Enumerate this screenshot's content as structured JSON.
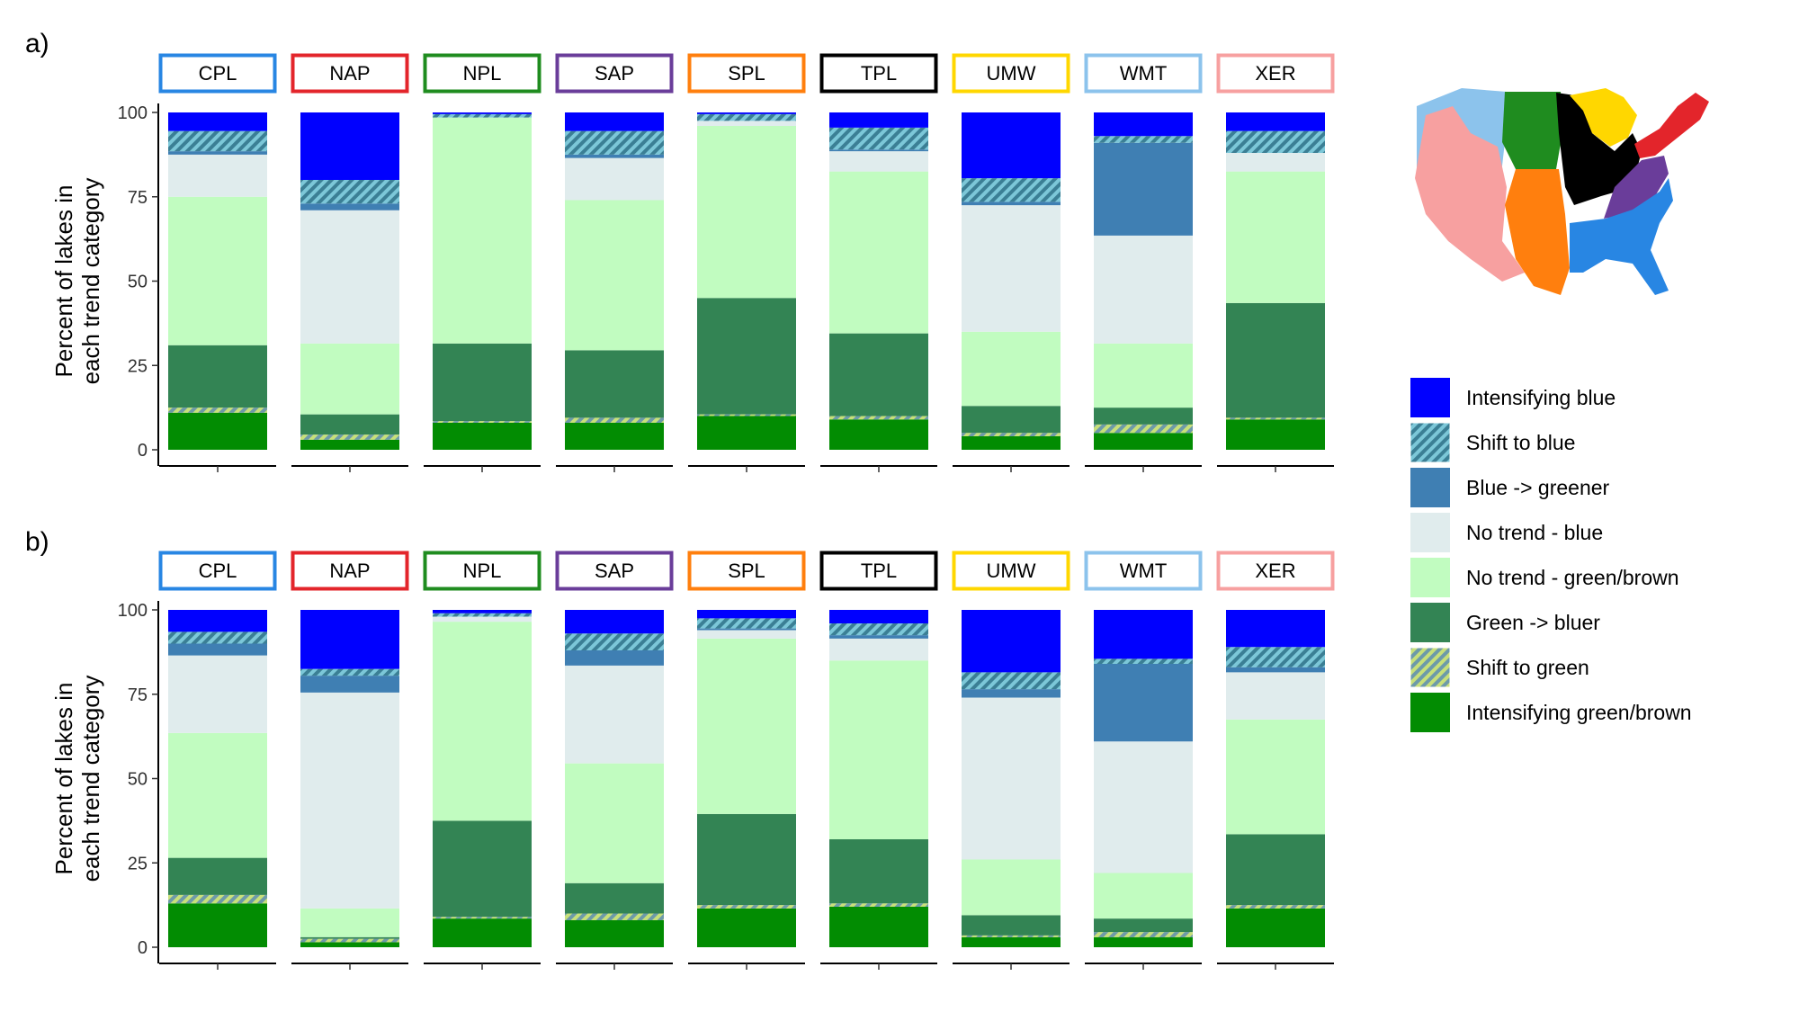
{
  "chart_data": {
    "type": "bar",
    "stacked": true,
    "ylabel": "Percent of lakes in\neach trend category",
    "ylim": [
      0,
      100
    ],
    "yticks": [
      0,
      25,
      50,
      75,
      100
    ],
    "legend": {
      "placement": "right",
      "entries": [
        {
          "label": "Intensifying blue",
          "color": "#0000ff",
          "hatched": false
        },
        {
          "label": "Shift to blue",
          "color": "#5f9fbf",
          "hatched": true
        },
        {
          "label": "Blue -> greener",
          "color": "#3f7fb3",
          "hatched": false
        },
        {
          "label": "No trend - blue",
          "color": "#e0eced",
          "hatched": false
        },
        {
          "label": "No trend - green/brown",
          "color": "#c1fcc0",
          "hatched": false
        },
        {
          "label": "Green -> bluer",
          "color": "#338454",
          "hatched": false
        },
        {
          "label": "Shift to green",
          "color": "#a9bf73",
          "hatched": true
        },
        {
          "label": "Intensifying green/brown",
          "color": "#028c02",
          "hatched": false
        }
      ]
    },
    "regions": [
      {
        "name": "CPL",
        "color": "#2886e3"
      },
      {
        "name": "NAP",
        "color": "#e3252b"
      },
      {
        "name": "NPL",
        "color": "#1f8c1f"
      },
      {
        "name": "SAP",
        "color": "#6a3d9a"
      },
      {
        "name": "SPL",
        "color": "#ff7f0e"
      },
      {
        "name": "TPL",
        "color": "#000000"
      },
      {
        "name": "UMW",
        "color": "#ffd700"
      },
      {
        "name": "WMT",
        "color": "#8cc3ec"
      },
      {
        "name": "XER",
        "color": "#f7a0a0"
      }
    ],
    "panels": [
      {
        "label": "a)",
        "categories": [
          "CPL",
          "NAP",
          "NPL",
          "SAP",
          "SPL",
          "TPL",
          "UMW",
          "WMT",
          "XER"
        ],
        "series": [
          {
            "name": "Intensifying green/brown",
            "values": [
              11,
              3,
              8,
              8,
              10,
              9,
              4,
              5,
              9
            ]
          },
          {
            "name": "Shift to green",
            "values": [
              1.5,
              1.5,
              0.5,
              1.5,
              0.5,
              1,
              1,
              2.5,
              0.5
            ]
          },
          {
            "name": "Green -> bluer",
            "values": [
              18.5,
              6,
              23,
              20,
              34.5,
              24.5,
              8,
              5,
              34
            ]
          },
          {
            "name": "No trend - green/brown",
            "values": [
              44,
              21,
              67,
              44.5,
              51,
              48,
              22,
              19,
              39
            ]
          },
          {
            "name": "No trend - blue",
            "values": [
              12.5,
              39.5,
              0,
              12.5,
              1.5,
              6,
              37.5,
              32,
              5.5
            ]
          },
          {
            "name": "Blue -> greener",
            "values": [
              1,
              2,
              0,
              1,
              0,
              0.5,
              1,
              27.5,
              0
            ]
          },
          {
            "name": "Shift to blue",
            "values": [
              6,
              7,
              1,
              7,
              2,
              6.5,
              7,
              2,
              6.5
            ]
          },
          {
            "name": "Intensifying blue",
            "values": [
              5.5,
              20,
              0.5,
              5.5,
              0.5,
              4.5,
              19.5,
              7,
              5.5
            ]
          }
        ]
      },
      {
        "label": "b)",
        "categories": [
          "CPL",
          "NAP",
          "NPL",
          "SAP",
          "SPL",
          "TPL",
          "UMW",
          "WMT",
          "XER"
        ],
        "series": [
          {
            "name": "Intensifying green/brown",
            "values": [
              13,
              1.5,
              8.5,
              8,
              11.5,
              12,
              3,
              3,
              11.5
            ]
          },
          {
            "name": "Shift to green",
            "values": [
              2.5,
              1,
              0.5,
              2,
              1,
              1,
              0.5,
              1.5,
              1
            ]
          },
          {
            "name": "Green -> bluer",
            "values": [
              11,
              0.5,
              28.5,
              9,
              27,
              19,
              6,
              4,
              21
            ]
          },
          {
            "name": "No trend - green/brown",
            "values": [
              37,
              8.5,
              59,
              35.5,
              52,
              53,
              16.5,
              13.5,
              34
            ]
          },
          {
            "name": "No trend - blue",
            "values": [
              23,
              64,
              1.5,
              29,
              2.5,
              6.5,
              48,
              39,
              14
            ]
          },
          {
            "name": "Blue -> greener",
            "values": [
              3.5,
              5,
              0,
              4.5,
              0.5,
              1,
              2.5,
              23,
              1.5
            ]
          },
          {
            "name": "Shift to blue",
            "values": [
              3.5,
              2,
              1,
              5,
              3,
              3.5,
              5,
              1.5,
              6
            ]
          },
          {
            "name": "Intensifying blue",
            "values": [
              6.5,
              17.5,
              1,
              7,
              2.5,
              4,
              18.5,
              14.5,
              11
            ]
          }
        ]
      }
    ]
  }
}
